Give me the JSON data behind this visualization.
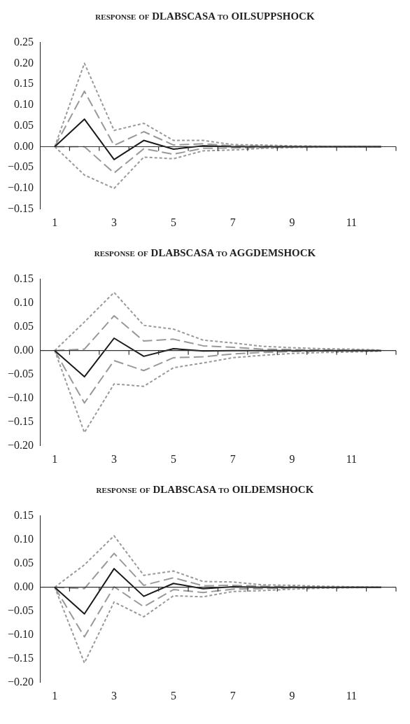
{
  "chart_data": [
    {
      "type": "line",
      "title": "response of DLABSCASA to OILSUPPSHOCK",
      "categories": [
        "1",
        null,
        "3",
        null,
        "5",
        null,
        "7",
        null,
        "9",
        null,
        "11",
        null
      ],
      "series": [
        {
          "color": "#1a1a1a",
          "line_style": "solid",
          "values": [
            0,
            0.066,
            -0.031,
            0.015,
            -0.006,
            0.002,
            0,
            0,
            0,
            0,
            0,
            0
          ]
        },
        {
          "color": "#999999",
          "line_style": "dashed",
          "values": [
            0,
            0.133,
            0.003,
            0.036,
            0.004,
            0.007,
            0.002,
            0.001,
            0,
            0,
            0,
            0
          ]
        },
        {
          "color": "#999999",
          "line_style": "dashed",
          "values": [
            0,
            0,
            -0.063,
            -0.005,
            -0.018,
            -0.004,
            -0.003,
            -0.002,
            -0.001,
            0,
            0,
            0
          ]
        },
        {
          "color": "#999999",
          "line_style": "dotted",
          "values": [
            0,
            0.2,
            0.039,
            0.056,
            0.015,
            0.015,
            0.005,
            0.004,
            0.002,
            0.001,
            0.001,
            0
          ]
        },
        {
          "color": "#999999",
          "line_style": "dotted",
          "values": [
            0,
            -0.068,
            -0.1,
            -0.025,
            -0.029,
            -0.01,
            -0.008,
            -0.004,
            -0.002,
            -0.001,
            -0.001,
            0
          ]
        }
      ],
      "ylim": [
        -0.15,
        0.25
      ],
      "yticks": [
        {
          "value": -0.15,
          "label": "−0.15"
        },
        {
          "value": -0.1,
          "label": "−0.10"
        },
        {
          "value": -0.05,
          "label": "−0.05"
        },
        {
          "value": 0,
          "label": "0.00"
        },
        {
          "value": 0.05,
          "label": "0.05"
        },
        {
          "value": 0.1,
          "label": "0.10"
        },
        {
          "value": 0.15,
          "label": "0.15"
        },
        {
          "value": 0.2,
          "label": "0.20"
        },
        {
          "value": 0.25,
          "label": "0.25"
        }
      ],
      "ref_lines": [
        {
          "axis": "y",
          "value": 0,
          "color": "#333333"
        }
      ],
      "grid": false,
      "legend": false,
      "marker": "none"
    },
    {
      "type": "line",
      "title": "response of DLABSCASA to AGGDEMSHOCK",
      "categories": [
        "1",
        null,
        "3",
        null,
        "5",
        null,
        "7",
        null,
        "9",
        null,
        "11",
        null
      ],
      "series": [
        {
          "color": "#1a1a1a",
          "line_style": "solid",
          "values": [
            0,
            -0.055,
            0.026,
            -0.012,
            0.004,
            -0.001,
            0,
            0,
            0,
            0,
            0,
            0
          ]
        },
        {
          "color": "#999999",
          "line_style": "dashed",
          "values": [
            0,
            0.003,
            0.073,
            0.02,
            0.024,
            0.01,
            0.007,
            0.003,
            0.002,
            0.001,
            0.001,
            0
          ]
        },
        {
          "color": "#999999",
          "line_style": "dashed",
          "values": [
            0,
            -0.11,
            -0.021,
            -0.042,
            -0.015,
            -0.013,
            -0.007,
            -0.004,
            -0.002,
            -0.001,
            -0.001,
            0
          ]
        },
        {
          "color": "#999999",
          "line_style": "dotted",
          "values": [
            0,
            0.06,
            0.122,
            0.053,
            0.045,
            0.022,
            0.016,
            0.009,
            0.006,
            0.004,
            0.003,
            0.001
          ]
        },
        {
          "color": "#999999",
          "line_style": "dotted",
          "values": [
            0,
            -0.172,
            -0.07,
            -0.075,
            -0.036,
            -0.026,
            -0.015,
            -0.01,
            -0.006,
            -0.004,
            -0.003,
            -0.001
          ]
        }
      ],
      "ylim": [
        -0.2,
        0.15
      ],
      "yticks": [
        {
          "value": -0.2,
          "label": "−0.20"
        },
        {
          "value": -0.15,
          "label": "−0.15"
        },
        {
          "value": -0.1,
          "label": "−0.10"
        },
        {
          "value": -0.05,
          "label": "−0.05"
        },
        {
          "value": 0,
          "label": "0.00"
        },
        {
          "value": 0.05,
          "label": "0.05"
        },
        {
          "value": 0.1,
          "label": "0.10"
        },
        {
          "value": 0.15,
          "label": "0.15"
        }
      ],
      "ref_lines": [
        {
          "axis": "y",
          "value": 0,
          "color": "#333333"
        }
      ],
      "grid": false,
      "legend": false,
      "marker": "none"
    },
    {
      "type": "line",
      "title": "response of DLABSCASA to OILDEMSHOCK",
      "categories": [
        "1",
        null,
        "3",
        null,
        "5",
        null,
        "7",
        null,
        "9",
        null,
        "11",
        null
      ],
      "series": [
        {
          "color": "#1a1a1a",
          "line_style": "solid",
          "values": [
            0,
            -0.056,
            0.039,
            -0.019,
            0.008,
            -0.003,
            0.001,
            0,
            0,
            0,
            0,
            0
          ]
        },
        {
          "color": "#999999",
          "line_style": "dashed",
          "values": [
            0,
            -0.003,
            0.071,
            0.004,
            0.02,
            0.003,
            0.004,
            0.002,
            0.001,
            0,
            0,
            0
          ]
        },
        {
          "color": "#999999",
          "line_style": "dashed",
          "values": [
            0,
            -0.104,
            0.001,
            -0.041,
            -0.005,
            -0.011,
            -0.004,
            -0.003,
            -0.001,
            -0.001,
            0,
            0
          ]
        },
        {
          "color": "#999999",
          "line_style": "dotted",
          "values": [
            0,
            0.047,
            0.108,
            0.025,
            0.034,
            0.012,
            0.011,
            0.005,
            0.004,
            0.002,
            0.001,
            0
          ]
        },
        {
          "color": "#999999",
          "line_style": "dotted",
          "values": [
            0,
            -0.159,
            -0.031,
            -0.062,
            -0.018,
            -0.02,
            -0.009,
            -0.007,
            -0.004,
            -0.002,
            -0.001,
            0
          ]
        }
      ],
      "ylim": [
        -0.2,
        0.15
      ],
      "yticks": [
        {
          "value": -0.2,
          "label": "−0.20"
        },
        {
          "value": -0.15,
          "label": "−0.15"
        },
        {
          "value": -0.1,
          "label": "−0.10"
        },
        {
          "value": -0.05,
          "label": "−0.05"
        },
        {
          "value": 0,
          "label": "0.00"
        },
        {
          "value": 0.05,
          "label": "0.05"
        },
        {
          "value": 0.1,
          "label": "0.10"
        },
        {
          "value": 0.15,
          "label": "0.15"
        }
      ],
      "ref_lines": [
        {
          "axis": "y",
          "value": 0,
          "color": "#333333"
        }
      ],
      "grid": false,
      "legend": false,
      "marker": "none"
    }
  ]
}
